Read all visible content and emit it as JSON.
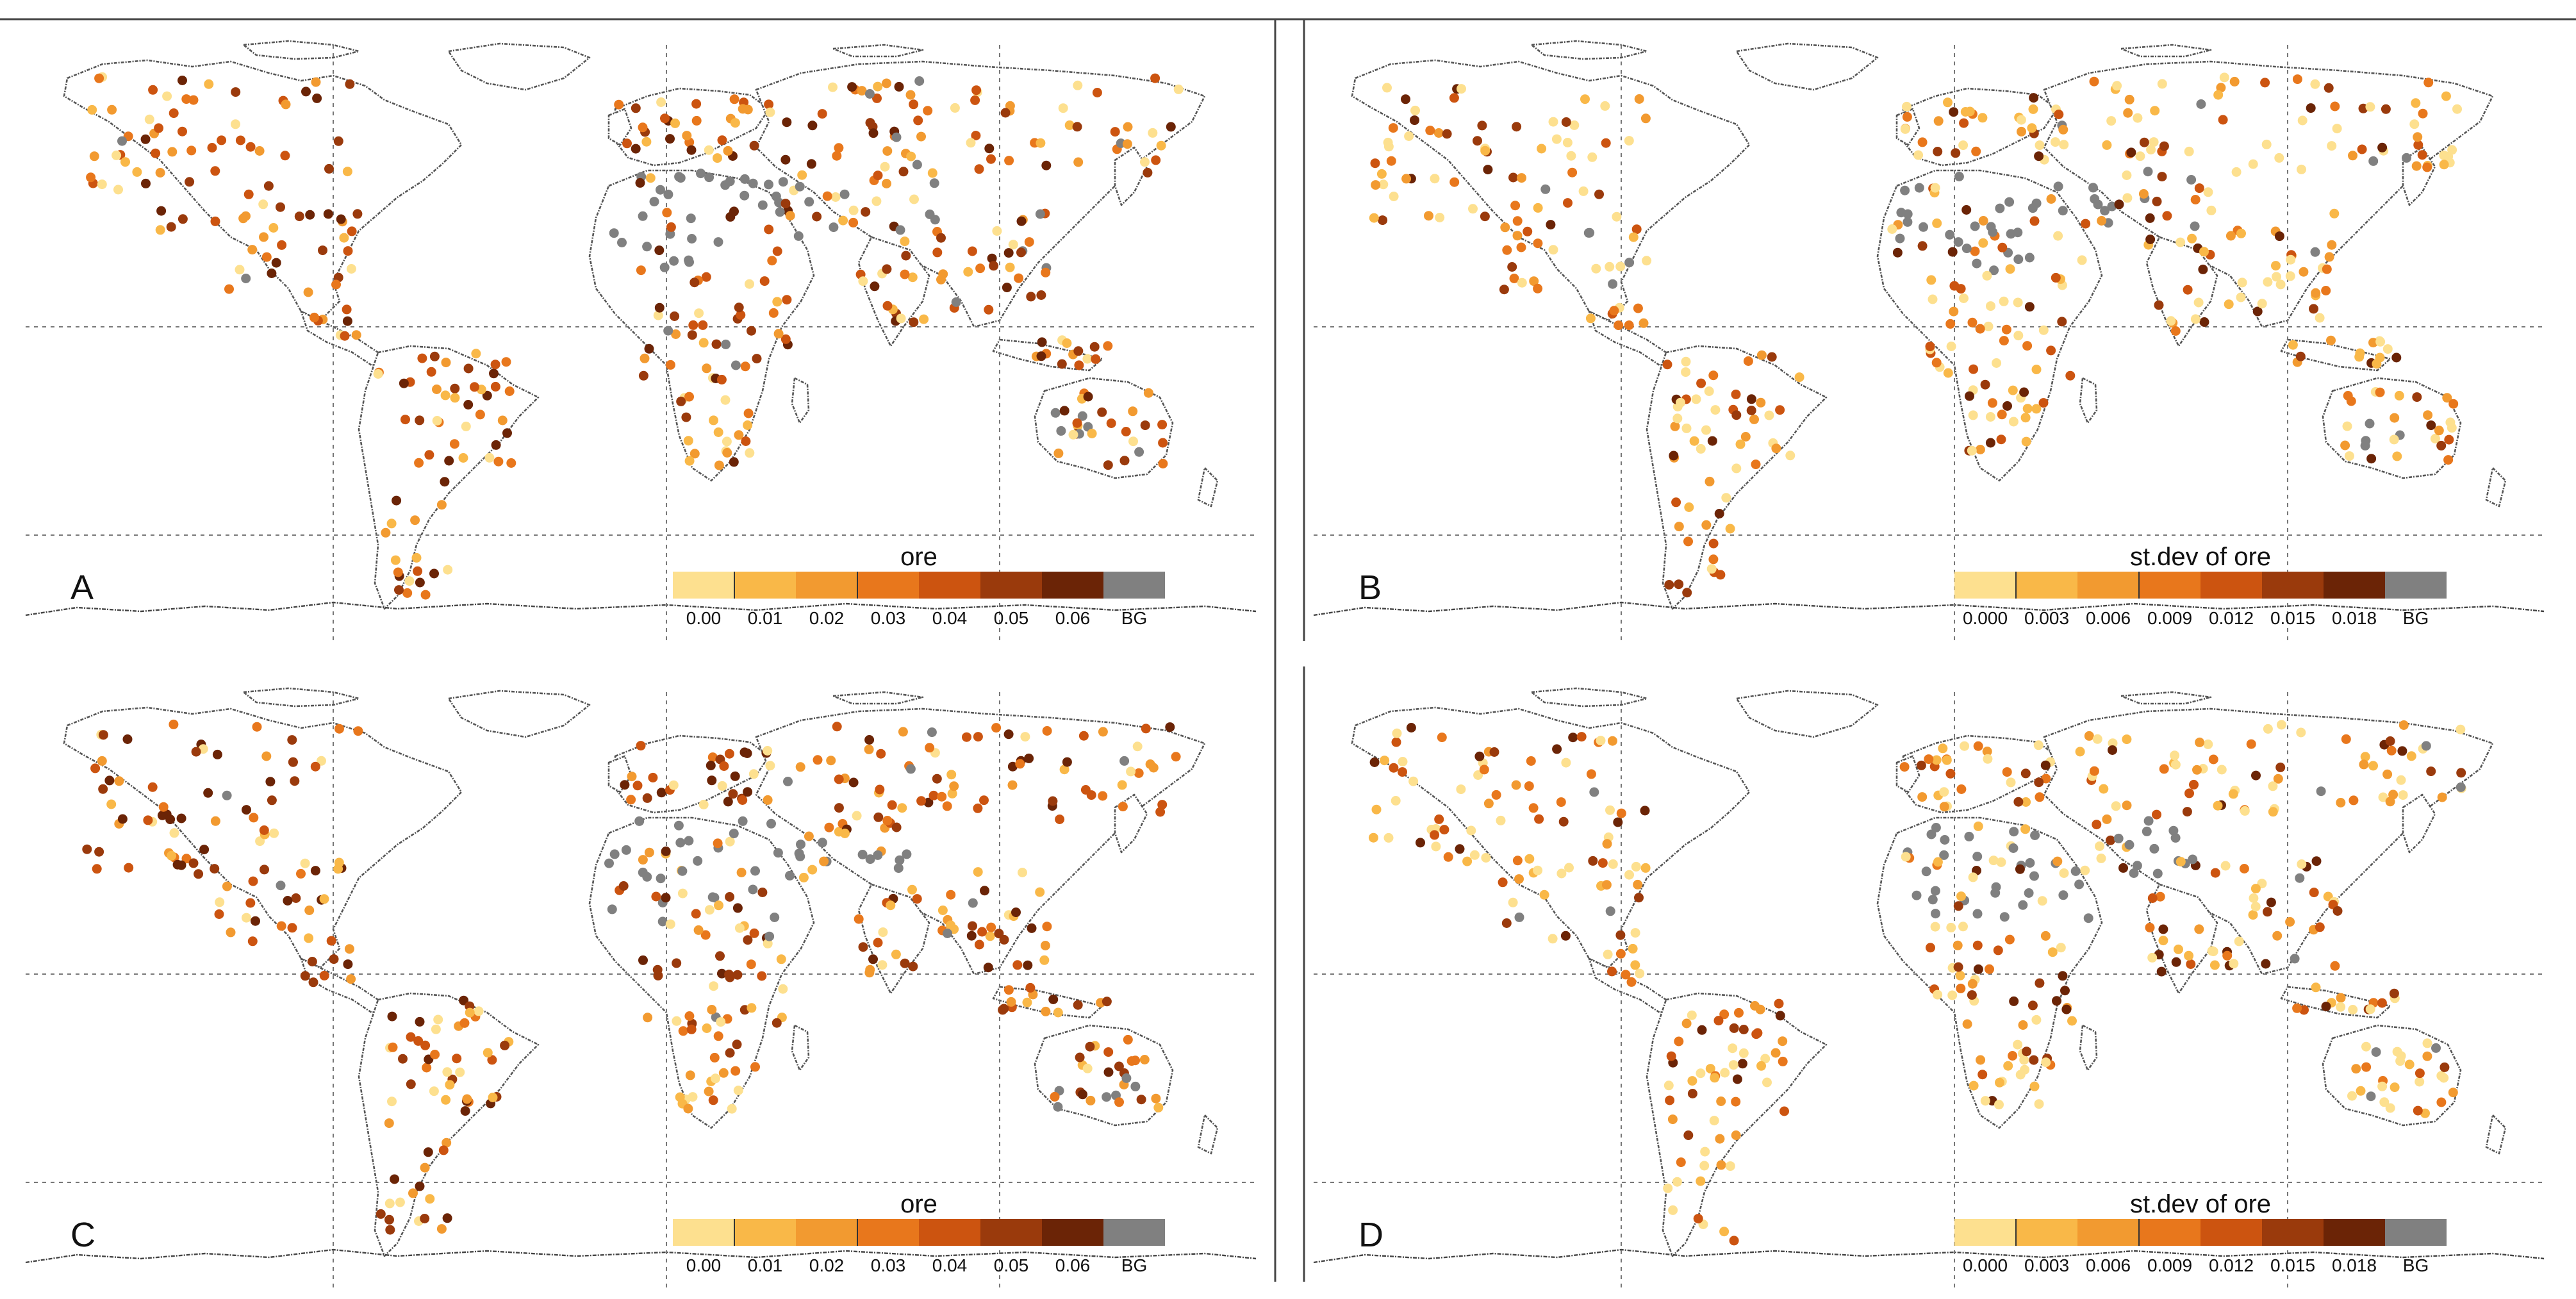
{
  "figure": {
    "panels": [
      {
        "label": "A",
        "legend_title": "ore",
        "tick_labels": [
          "0.00",
          "0.01",
          "0.02",
          "0.03",
          "0.04",
          "0.05",
          "0.06",
          "BG"
        ],
        "colors": "pal",
        "seed": 11
      },
      {
        "label": "B",
        "legend_title": "st.dev of ore",
        "tick_labels": [
          "0.000",
          "0.003",
          "0.006",
          "0.009",
          "0.012",
          "0.015",
          "0.018",
          "BG"
        ],
        "colors": "pal",
        "seed": 23
      },
      {
        "label": "C",
        "legend_title": "ore",
        "tick_labels": [
          "0.00",
          "0.01",
          "0.02",
          "0.03",
          "0.04",
          "0.05",
          "0.06",
          "BG"
        ],
        "colors": "pal",
        "seed": 37
      },
      {
        "label": "D",
        "legend_title": "st.dev of ore",
        "tick_labels": [
          "0.000",
          "0.003",
          "0.006",
          "0.009",
          "0.012",
          "0.015",
          "0.018",
          "BG"
        ],
        "colors": "pal",
        "seed": 53
      }
    ]
  },
  "palette": [
    "#fde08f",
    "#f9b848",
    "#f29a30",
    "#e8771c",
    "#cc5410",
    "#9a3a0c",
    "#6b2406",
    "#808080"
  ]
}
